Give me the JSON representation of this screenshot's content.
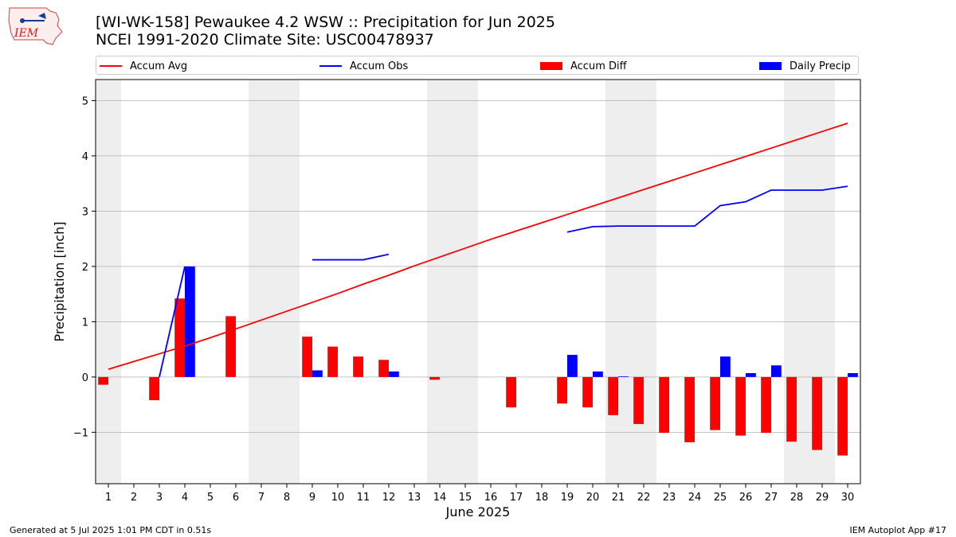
{
  "header": {
    "title_line1": "[WI-WK-158] Pewaukee 4.2 WSW :: Precipitation for Jun 2025",
    "title_line2": "NCEI 1991-2020 Climate Site: USC00478937"
  },
  "logo": {
    "text": "IEM"
  },
  "footer": {
    "generated": "Generated at 5 Jul 2025 1:01 PM CDT in 0.51s",
    "app": "IEM Autoplot App #17"
  },
  "colors": {
    "accum_avg": "#ff0000",
    "accum_obs": "#0000ff",
    "accum_diff": "#ff0000",
    "daily_precip": "#0000ff",
    "weekend_shade": "#eeeeee",
    "grid": "#b0b0b0"
  },
  "chart_data": {
    "type": "bar",
    "xlabel": "June 2025",
    "ylabel": "Precipitation [inch]",
    "xlim": [
      0.5,
      30.5
    ],
    "ylim": [
      -1.93,
      5.38
    ],
    "yticks": [
      -1,
      0,
      1,
      2,
      3,
      4,
      5
    ],
    "ytick_labels": [
      "−1",
      "0",
      "1",
      "2",
      "3",
      "4",
      "5"
    ],
    "categories": [
      "1",
      "2",
      "3",
      "4",
      "5",
      "6",
      "7",
      "8",
      "9",
      "10",
      "11",
      "12",
      "13",
      "14",
      "15",
      "16",
      "17",
      "18",
      "19",
      "20",
      "21",
      "22",
      "23",
      "24",
      "25",
      "26",
      "27",
      "28",
      "29",
      "30"
    ],
    "grid": "y",
    "legend_position": "top",
    "weekend_days": [
      [
        1,
        1
      ],
      [
        7,
        8
      ],
      [
        14,
        15
      ],
      [
        21,
        22
      ],
      [
        28,
        29
      ]
    ],
    "series": [
      {
        "name": "Accum Avg",
        "kind": "line",
        "values": [
          0.14,
          0.28,
          0.42,
          0.56,
          0.71,
          0.87,
          1.03,
          1.19,
          1.35,
          1.51,
          1.68,
          1.84,
          2.01,
          2.17,
          2.33,
          2.49,
          2.64,
          2.79,
          2.94,
          3.09,
          3.24,
          3.39,
          3.54,
          3.69,
          3.84,
          3.99,
          4.14,
          4.29,
          4.44,
          4.59
        ]
      },
      {
        "name": "Accum Obs",
        "kind": "line",
        "values": [
          null,
          null,
          0.0,
          2.0,
          null,
          null,
          null,
          null,
          2.12,
          2.12,
          2.12,
          2.22,
          null,
          null,
          null,
          null,
          null,
          null,
          2.62,
          2.72,
          2.73,
          2.73,
          2.73,
          2.73,
          3.1,
          3.17,
          3.38,
          3.38,
          3.38,
          3.45
        ]
      },
      {
        "name": "Accum Diff",
        "kind": "bar",
        "values": [
          -0.14,
          null,
          -0.42,
          1.42,
          null,
          1.1,
          null,
          null,
          0.73,
          0.55,
          0.37,
          0.31,
          null,
          -0.05,
          null,
          null,
          -0.55,
          null,
          -0.48,
          -0.55,
          -0.69,
          -0.85,
          -1.01,
          -1.18,
          -0.96,
          -1.06,
          -1.01,
          -1.17,
          -1.32,
          -1.42
        ]
      },
      {
        "name": "Daily Precip",
        "kind": "bar",
        "values": [
          null,
          null,
          null,
          2.0,
          null,
          null,
          null,
          null,
          0.12,
          null,
          null,
          0.1,
          null,
          null,
          null,
          null,
          null,
          null,
          0.4,
          0.1,
          0.01,
          null,
          null,
          null,
          0.37,
          0.07,
          0.21,
          null,
          null,
          0.07
        ]
      }
    ]
  }
}
